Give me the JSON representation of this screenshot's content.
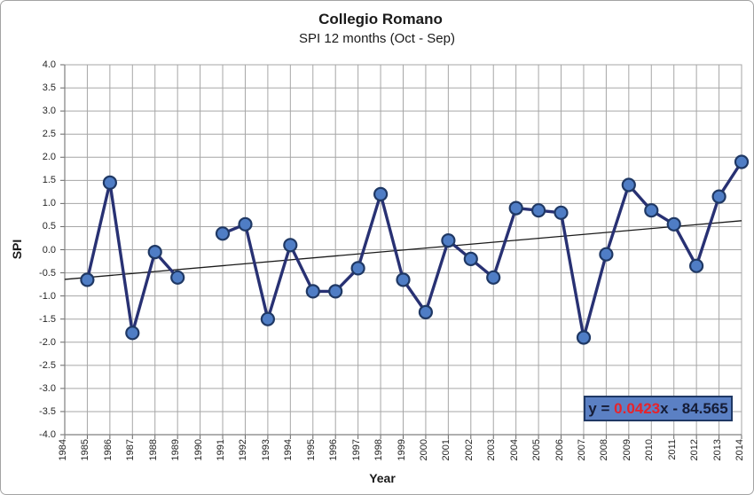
{
  "chart_data": {
    "type": "line",
    "title": "Collegio Romano",
    "subtitle": "SPI 12 months (Oct - Sep)",
    "xlabel": "Year",
    "ylabel": "SPI",
    "x": [
      1984,
      1985,
      1986,
      1987,
      1988,
      1989,
      1990,
      1991,
      1992,
      1993,
      1994,
      1995,
      1996,
      1997,
      1998,
      1999,
      2000,
      2001,
      2002,
      2003,
      2004,
      2005,
      2006,
      2007,
      2008,
      2009,
      2010,
      2011,
      2012,
      2013,
      2014
    ],
    "values": [
      null,
      -0.65,
      1.45,
      -1.8,
      -0.05,
      -0.6,
      null,
      0.35,
      0.55,
      -1.5,
      0.1,
      -0.9,
      -0.9,
      -0.4,
      1.2,
      -0.65,
      -1.35,
      0.2,
      -0.2,
      -0.6,
      0.9,
      0.85,
      0.8,
      -1.9,
      -0.1,
      1.4,
      0.85,
      0.55,
      -0.35,
      1.15,
      1.9
    ],
    "ylim": [
      -4.0,
      4.0
    ],
    "y_tick_labels": [
      "4.0",
      "3.5",
      "3.0",
      "2.5",
      "2.0",
      "1.5",
      "1.0",
      "0.5",
      "0.0",
      "-0.5",
      "-1.0",
      "-1.5",
      "-2.0",
      "-2.5",
      "-3.0",
      "-3.5",
      "-4.0"
    ],
    "grid": "on",
    "legend": "none",
    "trendline": {
      "slope": 0.0423,
      "intercept": -84.565
    },
    "equation": {
      "prefix": "y = ",
      "slope": "0.0423",
      "suffix": "x - 84.565"
    },
    "colors": {
      "series_line": "#283173",
      "marker_fill": "#4f7dc5",
      "marker_stroke": "#1f3864",
      "trendline": "#1a1a1a",
      "grid": "#a6a6a6",
      "axis": "#7f7f7f",
      "tick": "#666666",
      "equation_red": "#e8232a",
      "equation_text": "#151c36",
      "equation_box_fill": "#5b80c4",
      "equation_box_border": "#1f3864"
    }
  }
}
